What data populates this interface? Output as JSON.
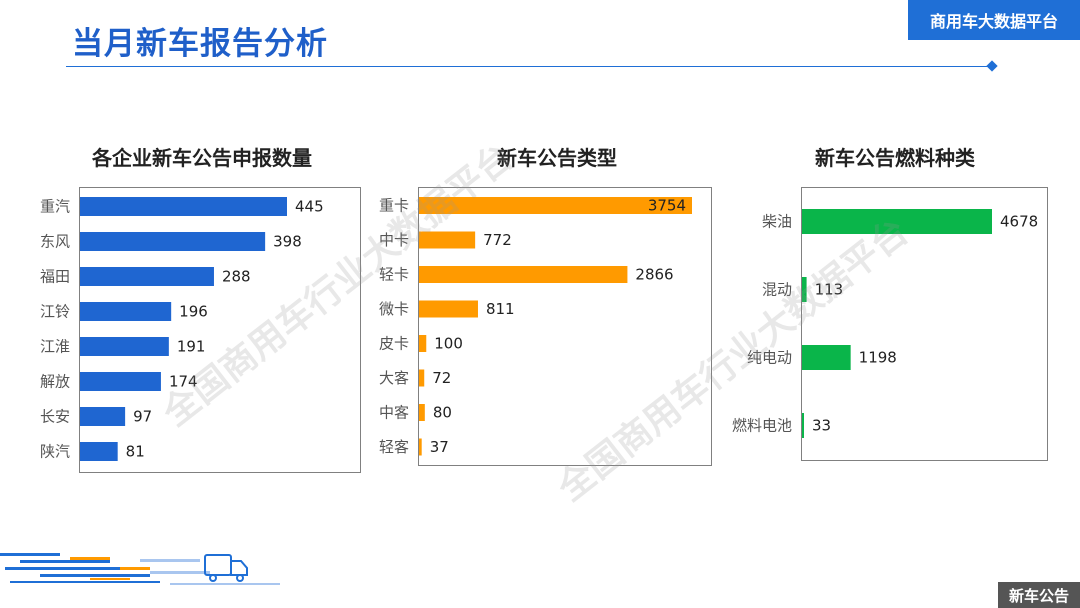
{
  "header": {
    "title": "当月新车报告分析",
    "brand": "商用车大数据平台"
  },
  "watermark": "全国商用车行业大数据平台",
  "footer": {
    "tag": "新车公告"
  },
  "colors": {
    "blue": "#1f66d1",
    "orange": "#ff9a00",
    "green": "#0ab54a",
    "accent": "#1f6fd6"
  },
  "chart_data": [
    {
      "type": "bar",
      "orientation": "horizontal",
      "title": "各企业新车公告申报数量",
      "color": "#1f66d1",
      "categories": [
        "重汽",
        "东风",
        "福田",
        "江铃",
        "江淮",
        "解放",
        "长安",
        "陕汽"
      ],
      "values": [
        445,
        398,
        288,
        196,
        191,
        174,
        97,
        81
      ]
    },
    {
      "type": "bar",
      "orientation": "horizontal",
      "title": "新车公告类型",
      "color": "#ff9a00",
      "categories": [
        "重卡",
        "中卡",
        "轻卡",
        "微卡",
        "皮卡",
        "大客",
        "中客",
        "轻客"
      ],
      "values": [
        3754,
        772,
        2866,
        811,
        100,
        72,
        80,
        37
      ]
    },
    {
      "type": "bar",
      "orientation": "horizontal",
      "title": "新车公告燃料种类",
      "color": "#0ab54a",
      "categories": [
        "柴油",
        "混动",
        "纯电动",
        "燃料电池"
      ],
      "values": [
        4678,
        113,
        1198,
        33
      ]
    }
  ]
}
